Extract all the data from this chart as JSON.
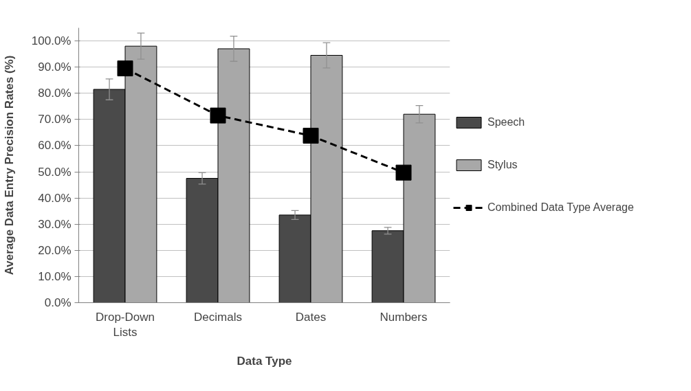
{
  "chart_data": {
    "type": "bar",
    "xlabel": "Data Type",
    "ylabel": "Average Data Entry Precision Rates (%)",
    "categories": [
      "Drop-Down Lists",
      "Decimals",
      "Dates",
      "Numbers"
    ],
    "series": [
      {
        "name": "Speech",
        "color": "#4a4a4a",
        "values": [
          81.5,
          47.5,
          33.5,
          27.5
        ],
        "errors": [
          4,
          2.2,
          1.7,
          1.3
        ]
      },
      {
        "name": "Stylus",
        "color": "#a8a8a8",
        "values": [
          98,
          97,
          94.5,
          72
        ],
        "errors": [
          5,
          4.8,
          4.8,
          3.3
        ]
      },
      {
        "name": "Combined Data Type Average",
        "type": "line",
        "color": "#000000",
        "values": [
          89.5,
          71.5,
          63.8,
          49.7
        ],
        "marker": "square",
        "line_style": "dashed"
      }
    ],
    "ylim": [
      0,
      105
    ],
    "yticks": [
      {
        "value": 0,
        "label": "0.0%"
      },
      {
        "value": 10,
        "label": "10.0%"
      },
      {
        "value": 20,
        "label": "20.0%"
      },
      {
        "value": 30,
        "label": "30.0%"
      },
      {
        "value": 40,
        "label": "40.0%"
      },
      {
        "value": 50,
        "label": "50.0%"
      },
      {
        "value": 60,
        "label": "60.0%"
      },
      {
        "value": 70,
        "label": "70.0%"
      },
      {
        "value": 80,
        "label": "80.0%"
      },
      {
        "value": 90,
        "label": "90.0%"
      },
      {
        "value": 100,
        "label": "100.0%"
      }
    ],
    "grid": "y",
    "legend": "right"
  }
}
